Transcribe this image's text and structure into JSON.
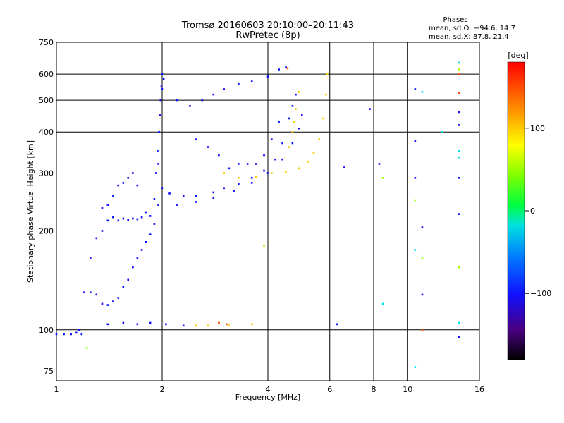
{
  "header": {
    "title_line1": "Tromsø 20160603 20:10:00–20:11:43",
    "title_line2": "RwPretec (8p)",
    "phase_heading": "Phases",
    "phase_o": "mean, sd,O: −94.6, 14.7",
    "phase_x": "mean, sd,X:  87.8, 21.4"
  },
  "chart_data": {
    "type": "scatter",
    "xlabel": "Frequency [MHz]",
    "ylabel": "Stationary phase Virtual Height [km]",
    "xscale": "log",
    "yscale": "log",
    "xlim": [
      1,
      16
    ],
    "ylim": [
      70,
      750
    ],
    "x_ticks": [
      {
        "v": 1,
        "label": "1"
      },
      {
        "v": 2,
        "label": "2"
      },
      {
        "v": 4,
        "label": "4"
      },
      {
        "v": 6,
        "label": "6"
      },
      {
        "v": 8,
        "label": "8"
      },
      {
        "v": 10,
        "label": "10"
      },
      {
        "v": 16,
        "label": "16"
      }
    ],
    "y_ticks": [
      {
        "v": 75,
        "label": "75"
      },
      {
        "v": 100,
        "label": "100"
      },
      {
        "v": 200,
        "label": "200"
      },
      {
        "v": 300,
        "label": "300"
      },
      {
        "v": 400,
        "label": "400"
      },
      {
        "v": 500,
        "label": "500"
      },
      {
        "v": 600,
        "label": "600"
      },
      {
        "v": 750,
        "label": "750"
      }
    ],
    "x_grid": [
      2,
      4,
      6,
      8,
      10
    ],
    "y_grid": [
      100,
      200,
      300,
      400,
      500,
      600
    ],
    "colorbar": {
      "label": "[deg]",
      "range": [
        -180,
        180
      ],
      "ticks": [
        {
          "v": 100,
          "label": "100"
        },
        {
          "v": 0,
          "label": "0"
        },
        {
          "v": -100,
          "label": "−100"
        }
      ]
    },
    "series": [
      {
        "phase": -100,
        "points": [
          [
            1.0,
            97
          ],
          [
            1.05,
            97
          ],
          [
            1.1,
            97
          ],
          [
            1.14,
            98
          ],
          [
            1.16,
            100
          ],
          [
            1.18,
            97
          ]
        ]
      },
      {
        "phase": -100,
        "points": [
          [
            1.2,
            130
          ],
          [
            1.25,
            130
          ],
          [
            1.3,
            128
          ],
          [
            1.35,
            120
          ],
          [
            1.4,
            119
          ],
          [
            1.45,
            122
          ],
          [
            1.5,
            125
          ],
          [
            1.55,
            135
          ],
          [
            1.6,
            142
          ],
          [
            1.65,
            155
          ],
          [
            1.7,
            165
          ],
          [
            1.75,
            175
          ],
          [
            1.8,
            185
          ],
          [
            1.85,
            195
          ],
          [
            1.9,
            210
          ],
          [
            1.95,
            240
          ]
        ]
      },
      {
        "phase": -100,
        "points": [
          [
            1.25,
            165
          ],
          [
            1.3,
            190
          ],
          [
            1.35,
            200
          ],
          [
            1.4,
            215
          ],
          [
            1.45,
            220
          ],
          [
            1.5,
            215
          ],
          [
            1.55,
            218
          ],
          [
            1.6,
            216
          ],
          [
            1.65,
            218
          ],
          [
            1.7,
            217
          ],
          [
            1.75,
            220
          ],
          [
            1.8,
            228
          ],
          [
            1.85,
            222
          ]
        ]
      },
      {
        "phase": -100,
        "points": [
          [
            1.35,
            235
          ],
          [
            1.4,
            240
          ],
          [
            1.45,
            255
          ],
          [
            1.5,
            275
          ],
          [
            1.55,
            280
          ],
          [
            1.6,
            290
          ],
          [
            1.65,
            300
          ],
          [
            1.7,
            275
          ]
        ]
      },
      {
        "phase": -100,
        "points": [
          [
            1.9,
            250
          ],
          [
            1.92,
            300
          ],
          [
            1.94,
            350
          ],
          [
            1.96,
            400
          ],
          [
            1.97,
            450
          ],
          [
            1.98,
            500
          ],
          [
            1.99,
            550
          ],
          [
            2.0,
            600
          ],
          [
            2.02,
            580
          ],
          [
            1.95,
            320
          ],
          [
            2.0,
            270
          ]
        ]
      },
      {
        "phase": -100,
        "points": [
          [
            2.1,
            260
          ],
          [
            2.3,
            255
          ],
          [
            2.5,
            255
          ],
          [
            2.8,
            262
          ],
          [
            3.0,
            270
          ],
          [
            3.3,
            278
          ],
          [
            3.6,
            290
          ],
          [
            3.9,
            305
          ],
          [
            4.2,
            330
          ],
          [
            4.4,
            370
          ],
          [
            4.6,
            440
          ],
          [
            4.7,
            480
          ],
          [
            4.8,
            520
          ]
        ]
      },
      {
        "phase": -100,
        "points": [
          [
            2.2,
            240
          ],
          [
            2.5,
            245
          ],
          [
            2.8,
            252
          ],
          [
            3.2,
            265
          ],
          [
            3.6,
            280
          ],
          [
            4.0,
            300
          ],
          [
            4.4,
            330
          ],
          [
            4.7,
            370
          ],
          [
            4.9,
            410
          ],
          [
            5.0,
            450
          ]
        ]
      },
      {
        "phase": -100,
        "points": [
          [
            2.0,
            540
          ],
          [
            2.2,
            500
          ],
          [
            2.4,
            480
          ],
          [
            2.6,
            500
          ],
          [
            2.8,
            520
          ],
          [
            3.0,
            540
          ],
          [
            3.3,
            560
          ],
          [
            3.6,
            570
          ],
          [
            4.0,
            590
          ],
          [
            4.3,
            620
          ],
          [
            4.5,
            630
          ]
        ]
      },
      {
        "phase": -100,
        "points": [
          [
            2.5,
            380
          ],
          [
            2.7,
            360
          ],
          [
            2.9,
            340
          ],
          [
            3.1,
            310
          ],
          [
            3.3,
            320
          ],
          [
            3.5,
            320
          ],
          [
            3.7,
            320
          ],
          [
            3.9,
            340
          ],
          [
            4.1,
            380
          ],
          [
            4.3,
            430
          ]
        ]
      },
      {
        "phase": 100,
        "points": [
          [
            3.0,
            300
          ],
          [
            3.3,
            290
          ],
          [
            3.7,
            292
          ],
          [
            4.1,
            300
          ],
          [
            4.5,
            302
          ],
          [
            4.9,
            310
          ],
          [
            5.2,
            325
          ],
          [
            5.4,
            345
          ],
          [
            5.6,
            380
          ],
          [
            5.75,
            440
          ],
          [
            5.85,
            520
          ],
          [
            5.9,
            600
          ]
        ]
      },
      {
        "phase": 100,
        "points": [
          [
            4.6,
            360
          ],
          [
            4.7,
            400
          ],
          [
            4.75,
            430
          ],
          [
            4.8,
            470
          ],
          [
            4.9,
            530
          ]
        ]
      },
      {
        "phase": 100,
        "points": [
          [
            2.5,
            103
          ],
          [
            2.7,
            103
          ],
          [
            2.9,
            105
          ],
          [
            3.1,
            103
          ],
          [
            3.6,
            104
          ]
        ]
      },
      {
        "phase": 150,
        "points": [
          [
            2.9,
            105
          ],
          [
            3.05,
            104
          ],
          [
            4.55,
            625
          ],
          [
            11,
            100
          ],
          [
            14,
            525
          ],
          [
            14,
            600
          ]
        ]
      },
      {
        "phase": -100,
        "points": [
          [
            1.4,
            104
          ],
          [
            1.55,
            105
          ],
          [
            1.7,
            104
          ],
          [
            1.85,
            105
          ],
          [
            2.05,
            104
          ],
          [
            2.3,
            103
          ]
        ]
      },
      {
        "phase": -100,
        "points": [
          [
            6.3,
            104
          ],
          [
            6.6,
            312
          ],
          [
            7.8,
            470
          ],
          [
            10.5,
            290
          ],
          [
            10.5,
            540
          ],
          [
            11,
            205
          ],
          [
            11,
            128
          ],
          [
            14,
            290
          ],
          [
            14,
            225
          ],
          [
            14,
            95
          ],
          [
            14,
            420
          ],
          [
            14,
            460
          ],
          [
            10.5,
            375
          ],
          [
            8.3,
            320
          ]
        ]
      },
      {
        "phase": 50,
        "points": [
          [
            3.9,
            180
          ],
          [
            1.22,
            88
          ],
          [
            8.5,
            290
          ],
          [
            10.5,
            248
          ],
          [
            11,
            165
          ],
          [
            14,
            155
          ],
          [
            14,
            620
          ]
        ]
      },
      {
        "phase": -20,
        "points": [
          [
            8.5,
            120
          ],
          [
            10.5,
            77
          ],
          [
            10.5,
            175
          ],
          [
            11,
            530
          ],
          [
            12.5,
            400
          ],
          [
            14,
            105
          ],
          [
            14,
            350
          ],
          [
            14,
            650
          ],
          [
            14,
            335
          ]
        ]
      }
    ]
  }
}
